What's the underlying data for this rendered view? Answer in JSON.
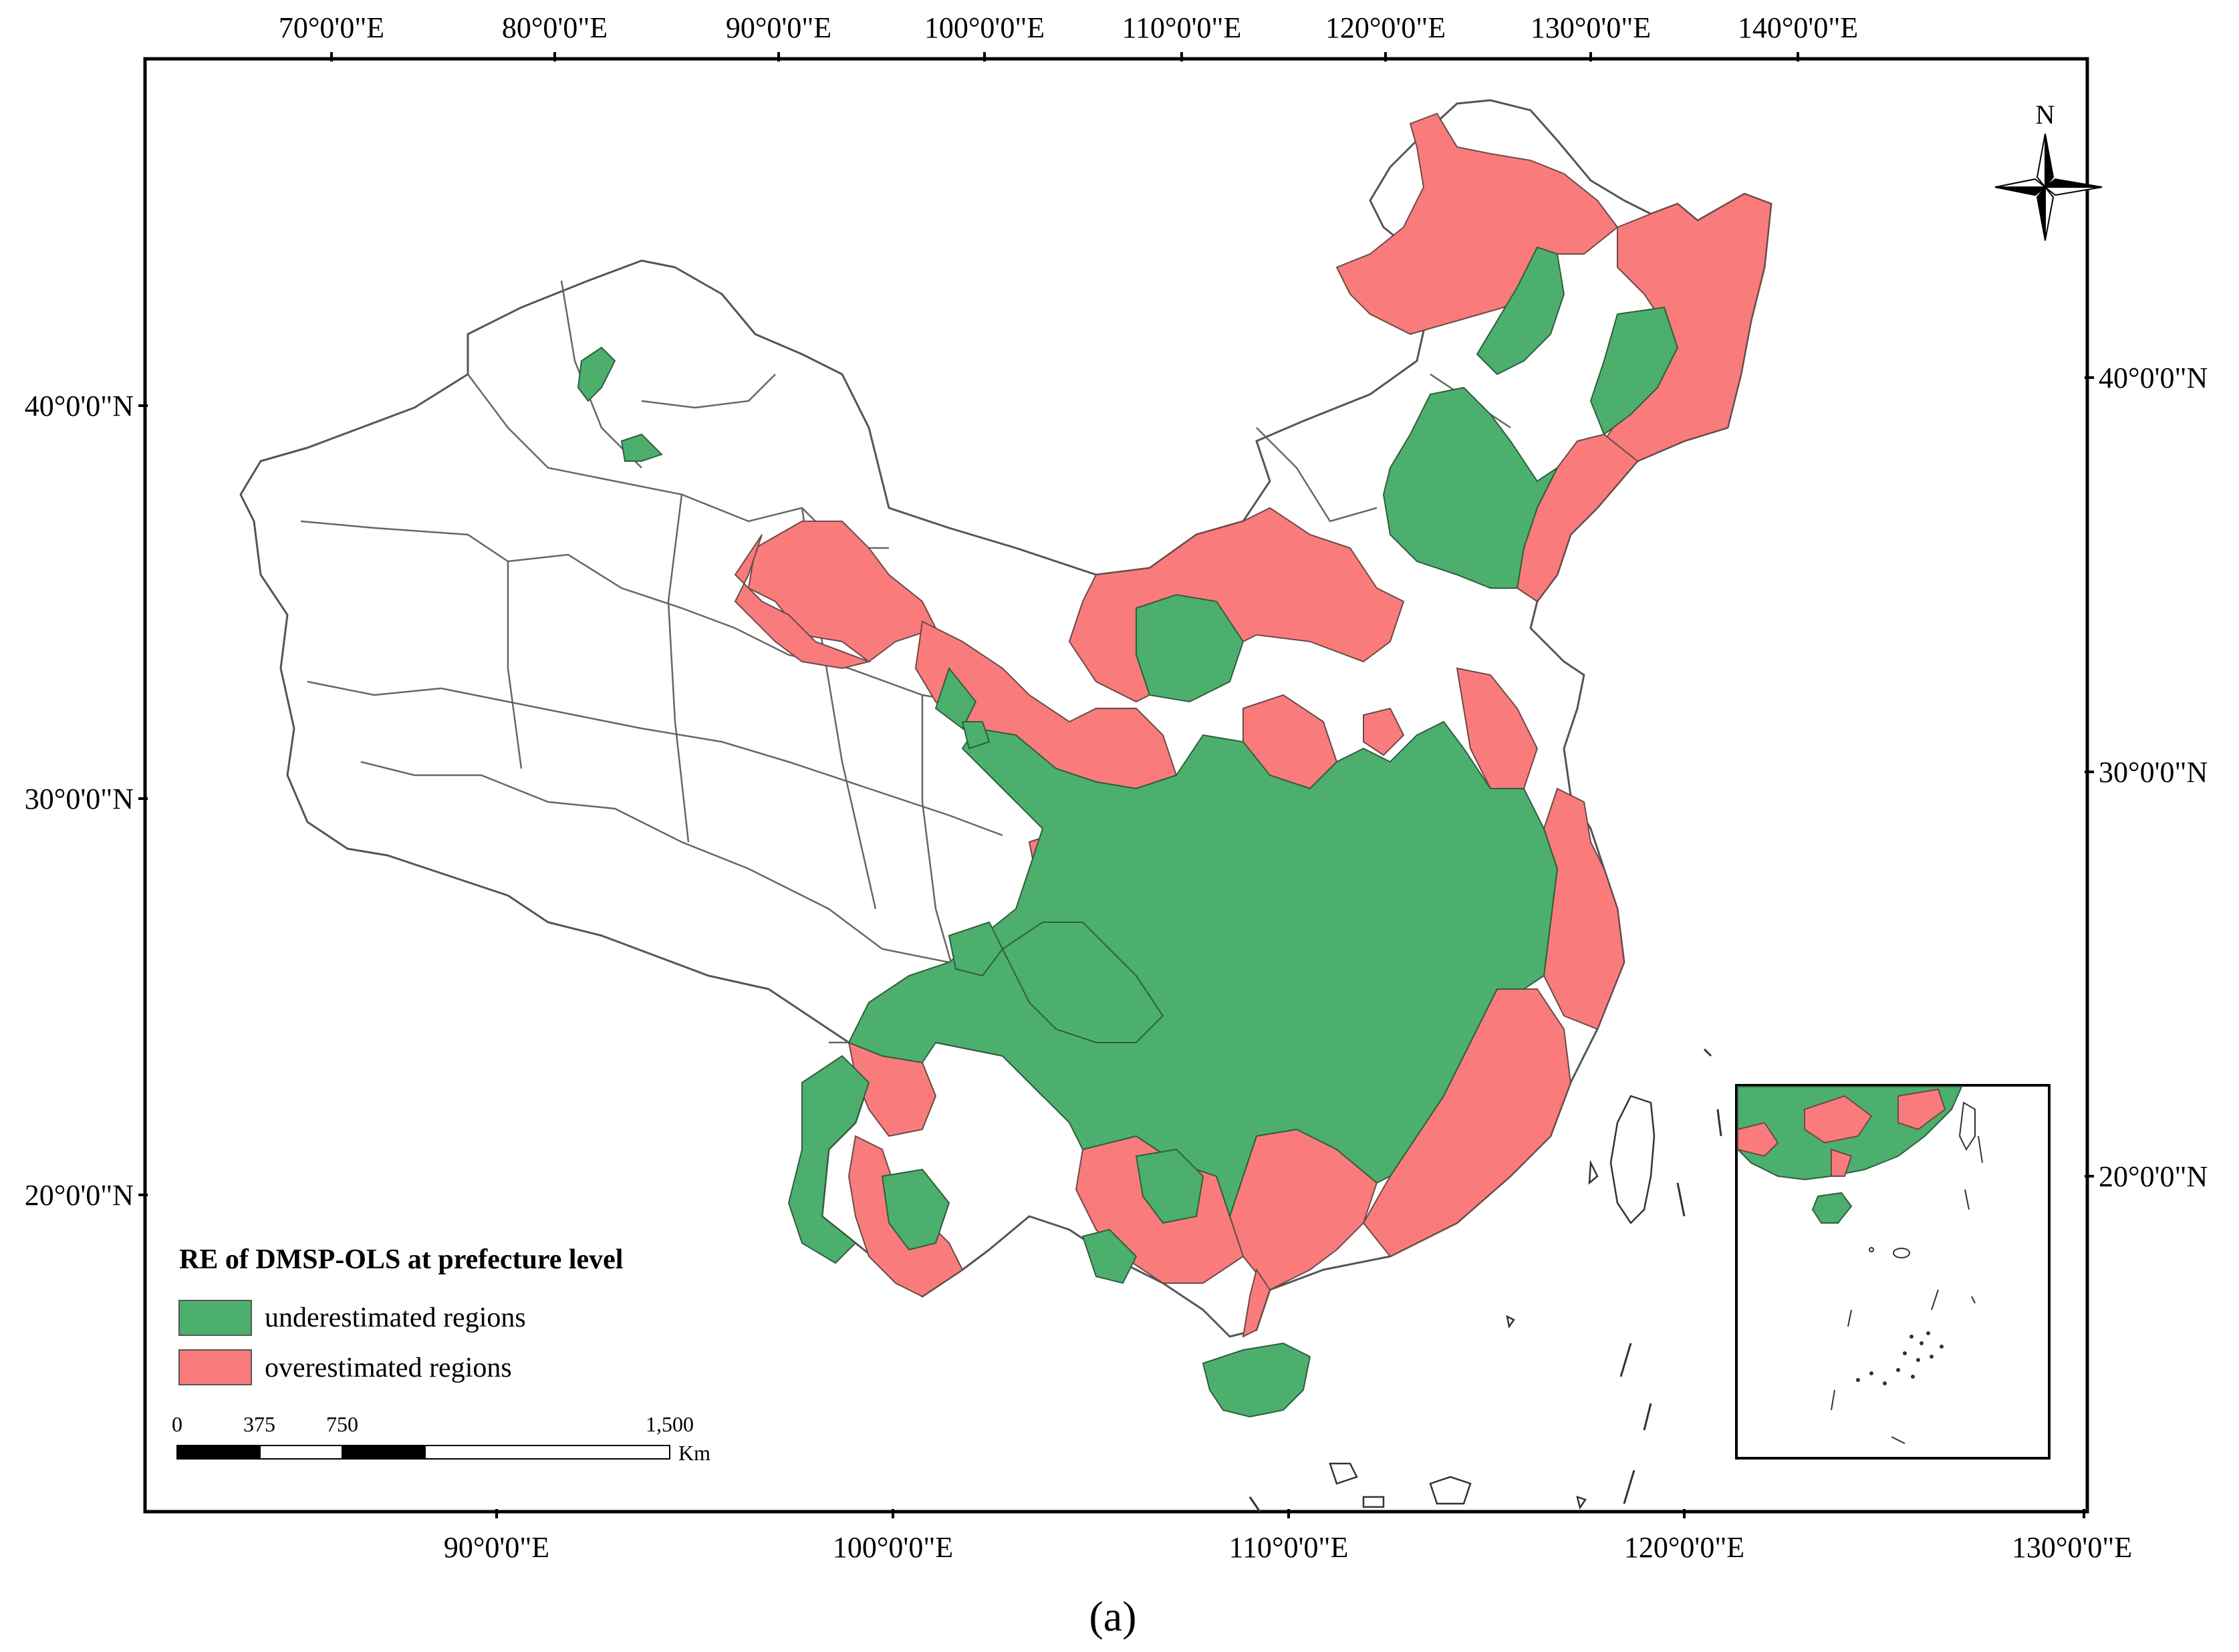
{
  "figure": {
    "caption": "(a)"
  },
  "axes": {
    "top_ticks": [
      "70°0'0\"E",
      "80°0'0\"E",
      "90°0'0\"E",
      "100°0'0\"E",
      "110°0'0\"E",
      "120°0'0\"E",
      "130°0'0\"E",
      "140°0'0\"E"
    ],
    "bottom_ticks": [
      "90°0'0\"E",
      "100°0'0\"E",
      "110°0'0\"E",
      "120°0'0\"E",
      "130°0'0\"E"
    ],
    "left_ticks": [
      "40°0'0\"N",
      "30°0'0\"N",
      "20°0'0\"N"
    ],
    "right_ticks": [
      "40°0'0\"N",
      "30°0'0\"N",
      "20°0'0\"N"
    ]
  },
  "north_arrow": {
    "label": "N",
    "icon": "compass-rose-icon"
  },
  "legend": {
    "title": "RE of DMSP-OLS at prefecture level",
    "items": [
      {
        "label": "underestimated regions",
        "color": "#4caf6e"
      },
      {
        "label": "overestimated regions",
        "color": "#fa7b7b"
      }
    ]
  },
  "scale_bar": {
    "labels": [
      "0",
      "375",
      "750",
      "1,500"
    ],
    "unit": "Km"
  },
  "colors": {
    "underestimated": "#4caf6e",
    "overestimated": "#fa7b7b",
    "no_data": "#ffffff",
    "boundary": "#555555"
  }
}
